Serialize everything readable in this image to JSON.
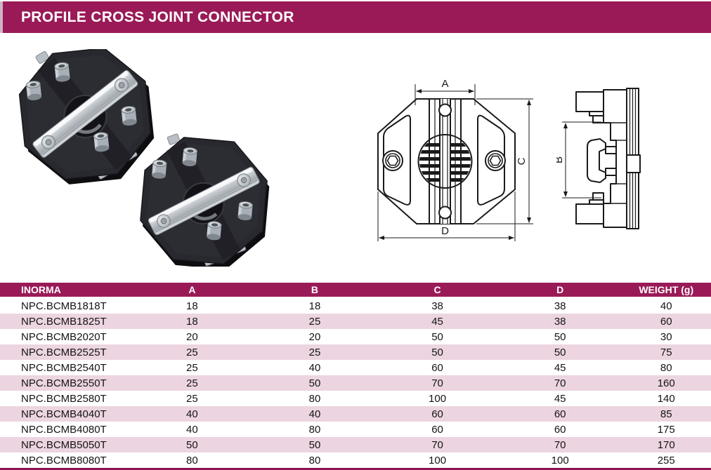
{
  "page": {
    "title": "PROFILE CROSS JOINT CONNECTOR"
  },
  "colors": {
    "accent": "#9A1A57",
    "row_alt": "#ECD5E0",
    "table_bottom_border": "#8A1550",
    "header_text": "#FFFFFF",
    "body_text": "#141414"
  },
  "figures": {
    "front_view": {
      "labels": {
        "a": "A",
        "c": "C",
        "d": "D"
      }
    },
    "side_view": {
      "labels": {
        "b": "B"
      }
    }
  },
  "table": {
    "columns": [
      "INORMA",
      "A",
      "B",
      "C",
      "D",
      "WEIGHT (g)"
    ],
    "rows": [
      [
        "NPC.BCMB1818T",
        "18",
        "18",
        "38",
        "38",
        "40"
      ],
      [
        "NPC.BCMB1825T",
        "18",
        "25",
        "45",
        "38",
        "60"
      ],
      [
        "NPC.BCMB2020T",
        "20",
        "20",
        "50",
        "50",
        "30"
      ],
      [
        "NPC.BCMB2525T",
        "25",
        "25",
        "50",
        "50",
        "75"
      ],
      [
        "NPC.BCMB2540T",
        "25",
        "40",
        "60",
        "45",
        "80"
      ],
      [
        "NPC.BCMB2550T",
        "25",
        "50",
        "70",
        "70",
        "160"
      ],
      [
        "NPC.BCMB2580T",
        "25",
        "80",
        "100",
        "45",
        "140"
      ],
      [
        "NPC.BCMB4040T",
        "40",
        "40",
        "60",
        "60",
        "85"
      ],
      [
        "NPC.BCMB4080T",
        "40",
        "80",
        "60",
        "60",
        "175"
      ],
      [
        "NPC.BCMB5050T",
        "50",
        "50",
        "70",
        "70",
        "170"
      ],
      [
        "NPC.BCMB8080T",
        "80",
        "80",
        "100",
        "100",
        "255"
      ]
    ]
  }
}
